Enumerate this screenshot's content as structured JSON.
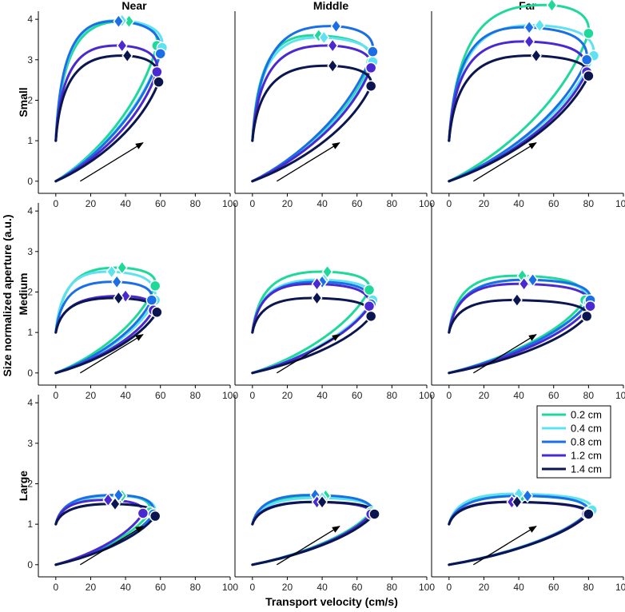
{
  "chart_data": {
    "type": "line",
    "layout": "3x3 small multiples (rows = object size, columns = object distance)",
    "columns": [
      "Near",
      "Middle",
      "Far"
    ],
    "rows": [
      "Small",
      "Medium",
      "Large"
    ],
    "xlabel": "Transport velocity (cm/s)",
    "ylabel": "Size normalized aperture (a.u.)",
    "xlim": [
      -10,
      100
    ],
    "ylim": [
      -0.3,
      4.2
    ],
    "xticks": [
      "0",
      "20",
      "40",
      "60",
      "80",
      "100"
    ],
    "yticks": [
      "0",
      "1",
      "2",
      "3",
      "4"
    ],
    "legend": {
      "position": "inside bottom-right panel, top-right",
      "entries": [
        {
          "label": "0.2 cm",
          "color": "#1fd99a"
        },
        {
          "label": "0.4 cm",
          "color": "#5ee2f2"
        },
        {
          "label": "0.8 cm",
          "color": "#1a6fe6"
        },
        {
          "label": "1.2 cm",
          "color": "#4a2ad0"
        },
        {
          "label": "1.4 cm",
          "color": "#0b1650"
        }
      ]
    },
    "marker_notes": "diamond = peak aperture (top of outbound curve); circle = peak transport velocity (right end of loop); arrow indicates direction of movement",
    "arrow": {
      "from": [
        14,
        0
      ],
      "to": [
        50,
        0.95
      ]
    },
    "panels": [
      {
        "row": "Small",
        "column": "Near",
        "series": [
          {
            "name": "0.2 cm",
            "peak_aperture": [
              42,
              3.95
            ],
            "peak_velocity": [
              58,
              3.35
            ],
            "start_aperture": 1.0
          },
          {
            "name": "0.4 cm",
            "peak_aperture": [
              38,
              3.97
            ],
            "peak_velocity": [
              61,
              3.3
            ],
            "start_aperture": 1.0
          },
          {
            "name": "0.8 cm",
            "peak_aperture": [
              36,
              3.95
            ],
            "peak_velocity": [
              60,
              3.15
            ],
            "start_aperture": 1.0
          },
          {
            "name": "1.2 cm",
            "peak_aperture": [
              38,
              3.35
            ],
            "peak_velocity": [
              58,
              2.7
            ],
            "start_aperture": 1.0
          },
          {
            "name": "1.4 cm",
            "peak_aperture": [
              41,
              3.1
            ],
            "peak_velocity": [
              59,
              2.45
            ],
            "start_aperture": 1.0
          }
        ]
      },
      {
        "row": "Small",
        "column": "Middle",
        "series": [
          {
            "name": "0.2 cm",
            "peak_aperture": [
              38,
              3.6
            ],
            "peak_velocity": [
              68,
              2.95
            ],
            "start_aperture": 1.0
          },
          {
            "name": "0.4 cm",
            "peak_aperture": [
              41,
              3.55
            ],
            "peak_velocity": [
              69,
              2.95
            ],
            "start_aperture": 1.0
          },
          {
            "name": "0.8 cm",
            "peak_aperture": [
              48,
              3.83
            ],
            "peak_velocity": [
              69,
              3.2
            ],
            "start_aperture": 1.0
          },
          {
            "name": "1.2 cm",
            "peak_aperture": [
              46,
              3.35
            ],
            "peak_velocity": [
              68,
              2.8
            ],
            "start_aperture": 1.0
          },
          {
            "name": "1.4 cm",
            "peak_aperture": [
              46,
              2.85
            ],
            "peak_velocity": [
              68,
              2.35
            ],
            "start_aperture": 1.0
          }
        ]
      },
      {
        "row": "Small",
        "column": "Far",
        "series": [
          {
            "name": "0.2 cm",
            "peak_aperture": [
              59,
              4.35
            ],
            "peak_velocity": [
              80,
              3.65
            ],
            "start_aperture": 1.0
          },
          {
            "name": "0.4 cm",
            "peak_aperture": [
              52,
              3.85
            ],
            "peak_velocity": [
              83,
              3.1
            ],
            "start_aperture": 1.0
          },
          {
            "name": "0.8 cm",
            "peak_aperture": [
              46,
              3.8
            ],
            "peak_velocity": [
              79,
              3.0
            ],
            "start_aperture": 1.0
          },
          {
            "name": "1.2 cm",
            "peak_aperture": [
              46,
              3.45
            ],
            "peak_velocity": [
              79,
              2.7
            ],
            "start_aperture": 1.0
          },
          {
            "name": "1.4 cm",
            "peak_aperture": [
              50,
              3.1
            ],
            "peak_velocity": [
              80,
              2.6
            ],
            "start_aperture": 1.0
          }
        ]
      },
      {
        "row": "Medium",
        "column": "Near",
        "series": [
          {
            "name": "0.2 cm",
            "peak_aperture": [
              38,
              2.6
            ],
            "peak_velocity": [
              57,
              2.15
            ],
            "start_aperture": 1.0
          },
          {
            "name": "0.4 cm",
            "peak_aperture": [
              32,
              2.5
            ],
            "peak_velocity": [
              57,
              1.8
            ],
            "start_aperture": 1.0
          },
          {
            "name": "0.8 cm",
            "peak_aperture": [
              35,
              2.25
            ],
            "peak_velocity": [
              55,
              1.8
            ],
            "start_aperture": 1.0
          },
          {
            "name": "1.2 cm",
            "peak_aperture": [
              40,
              1.9
            ],
            "peak_velocity": [
              56,
              1.55
            ],
            "start_aperture": 1.0
          },
          {
            "name": "1.4 cm",
            "peak_aperture": [
              36,
              1.85
            ],
            "peak_velocity": [
              58,
              1.5
            ],
            "start_aperture": 1.0
          }
        ]
      },
      {
        "row": "Medium",
        "column": "Middle",
        "series": [
          {
            "name": "0.2 cm",
            "peak_aperture": [
              43,
              2.5
            ],
            "peak_velocity": [
              67,
              2.05
            ],
            "start_aperture": 1.0
          },
          {
            "name": "0.4 cm",
            "peak_aperture": [
              41,
              2.3
            ],
            "peak_velocity": [
              69,
              1.8
            ],
            "start_aperture": 1.0
          },
          {
            "name": "0.8 cm",
            "peak_aperture": [
              40,
              2.25
            ],
            "peak_velocity": [
              68,
              1.7
            ],
            "start_aperture": 1.0
          },
          {
            "name": "1.2 cm",
            "peak_aperture": [
              37,
              2.2
            ],
            "peak_velocity": [
              67,
              1.65
            ],
            "start_aperture": 1.0
          },
          {
            "name": "1.4 cm",
            "peak_aperture": [
              37,
              1.85
            ],
            "peak_velocity": [
              68,
              1.4
            ],
            "start_aperture": 1.0
          }
        ]
      },
      {
        "row": "Medium",
        "column": "Far",
        "series": [
          {
            "name": "0.2 cm",
            "peak_aperture": [
              42,
              2.4
            ],
            "peak_velocity": [
              78,
              1.8
            ],
            "start_aperture": 1.0
          },
          {
            "name": "0.4 cm",
            "peak_aperture": [
              47,
              2.3
            ],
            "peak_velocity": [
              80,
              1.75
            ],
            "start_aperture": 1.0
          },
          {
            "name": "0.8 cm",
            "peak_aperture": [
              48,
              2.3
            ],
            "peak_velocity": [
              81,
              1.8
            ],
            "start_aperture": 1.0
          },
          {
            "name": "1.2 cm",
            "peak_aperture": [
              43,
              2.2
            ],
            "peak_velocity": [
              81,
              1.65
            ],
            "start_aperture": 1.0
          },
          {
            "name": "1.4 cm",
            "peak_aperture": [
              39,
              1.8
            ],
            "peak_velocity": [
              79,
              1.4
            ],
            "start_aperture": 1.0
          }
        ]
      },
      {
        "row": "Large",
        "column": "Near",
        "series": [
          {
            "name": "0.2 cm",
            "peak_aperture": [
              38,
              1.7
            ],
            "peak_velocity": [
              54,
              1.3
            ],
            "start_aperture": 1.0
          },
          {
            "name": "0.4 cm",
            "peak_aperture": [
              36,
              1.7
            ],
            "peak_velocity": [
              57,
              1.25
            ],
            "start_aperture": 1.0
          },
          {
            "name": "0.8 cm",
            "peak_aperture": [
              36,
              1.72
            ],
            "peak_velocity": [
              56,
              1.25
            ],
            "start_aperture": 1.0
          },
          {
            "name": "1.2 cm",
            "peak_aperture": [
              30,
              1.6
            ],
            "peak_velocity": [
              50,
              1.27
            ],
            "start_aperture": 1.0
          },
          {
            "name": "1.4 cm",
            "peak_aperture": [
              34,
              1.5
            ],
            "peak_velocity": [
              57,
              1.2
            ],
            "start_aperture": 1.0
          }
        ]
      },
      {
        "row": "Large",
        "column": "Middle",
        "series": [
          {
            "name": "0.2 cm",
            "peak_aperture": [
              42,
              1.7
            ],
            "peak_velocity": [
              68,
              1.3
            ],
            "start_aperture": 1.0
          },
          {
            "name": "0.4 cm",
            "peak_aperture": [
              40,
              1.65
            ],
            "peak_velocity": [
              70,
              1.25
            ],
            "start_aperture": 1.0
          },
          {
            "name": "0.8 cm",
            "peak_aperture": [
              36,
              1.72
            ],
            "peak_velocity": [
              69,
              1.25
            ],
            "start_aperture": 1.0
          },
          {
            "name": "1.2 cm",
            "peak_aperture": [
              37,
              1.55
            ],
            "peak_velocity": [
              68,
              1.25
            ],
            "start_aperture": 1.0
          },
          {
            "name": "1.4 cm",
            "peak_aperture": [
              40,
              1.55
            ],
            "peak_velocity": [
              70,
              1.25
            ],
            "start_aperture": 1.0
          }
        ]
      },
      {
        "row": "Large",
        "column": "Far",
        "series": [
          {
            "name": "0.2 cm",
            "peak_aperture": [
              42,
              1.7
            ],
            "peak_velocity": [
              80,
              1.3
            ],
            "start_aperture": 1.0
          },
          {
            "name": "0.4 cm",
            "peak_aperture": [
              40,
              1.75
            ],
            "peak_velocity": [
              82,
              1.35
            ],
            "start_aperture": 1.0
          },
          {
            "name": "0.8 cm",
            "peak_aperture": [
              45,
              1.7
            ],
            "peak_velocity": [
              80,
              1.25
            ],
            "start_aperture": 1.0
          },
          {
            "name": "1.2 cm",
            "peak_aperture": [
              36,
              1.55
            ],
            "peak_velocity": [
              79,
              1.25
            ],
            "start_aperture": 1.0
          },
          {
            "name": "1.4 cm",
            "peak_aperture": [
              39,
              1.55
            ],
            "peak_velocity": [
              80,
              1.25
            ],
            "start_aperture": 1.0
          }
        ]
      }
    ]
  }
}
